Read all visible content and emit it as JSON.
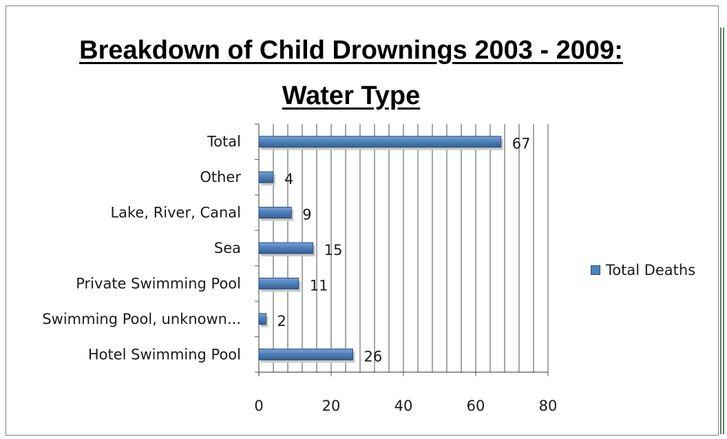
{
  "chart_data": {
    "type": "bar",
    "orientation": "horizontal",
    "title": "Breakdown of Child Drownings 2003 - 2009: Water Type",
    "categories": [
      "Total",
      "Other",
      "Lake, River,  Canal",
      "Sea",
      "Private Swimming Pool",
      "Swimming Pool, unknown...",
      "Hotel Swimming Pool"
    ],
    "series": [
      {
        "name": "Total Deaths",
        "values": [
          67,
          4,
          9,
          15,
          11,
          2,
          26
        ],
        "color": "#4f81bd"
      }
    ],
    "xlim": [
      0,
      80
    ],
    "x_ticks": [
      "0",
      "20",
      "40",
      "60",
      "80"
    ],
    "grid": true,
    "legend_position": "right"
  }
}
